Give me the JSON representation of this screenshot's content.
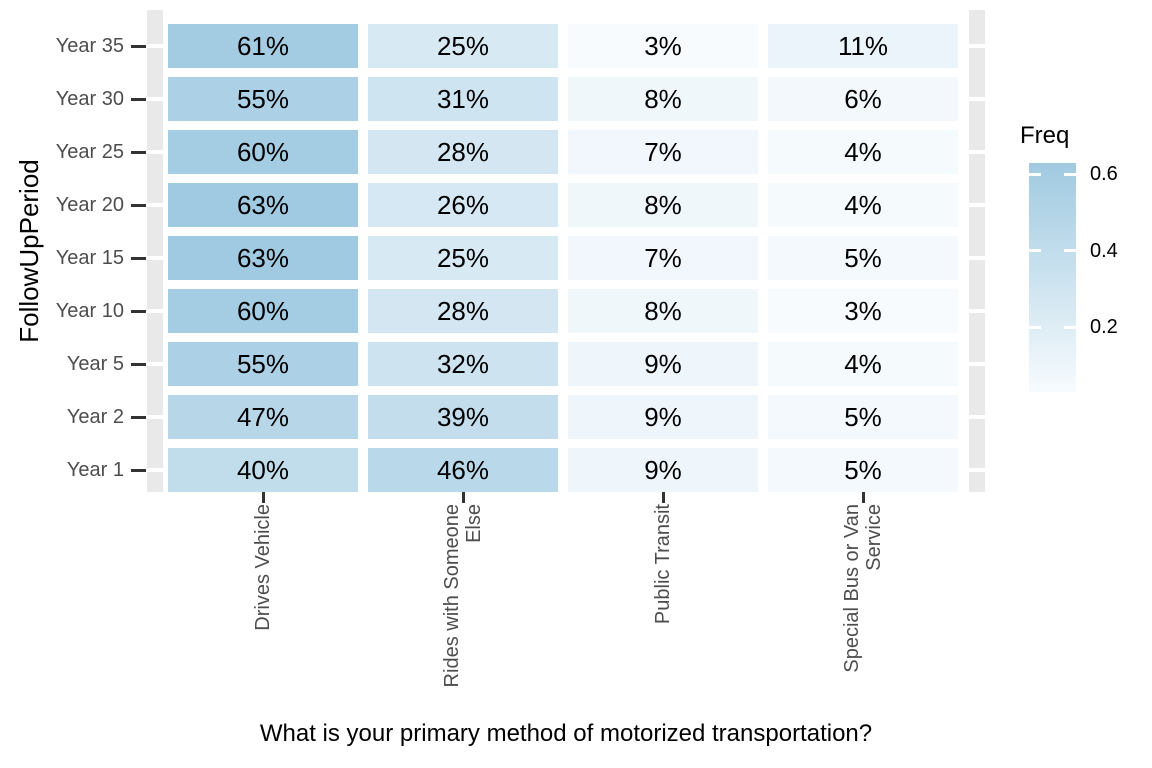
{
  "chart_data": {
    "type": "heatmap",
    "title": "",
    "xlabel": "What is your primary method of motorized transportation?",
    "ylabel": "FollowUpPeriod",
    "x_categories": [
      "Drives Vehicle",
      "Rides with Someone Else",
      "Public Transit",
      "Special Bus or Van Service"
    ],
    "x_category_lines": [
      [
        "Drives Vehicle"
      ],
      [
        "Rides with Someone",
        "Else"
      ],
      [
        "Public Transit"
      ],
      [
        "Special Bus or Van",
        "Service"
      ]
    ],
    "y_categories": [
      "Year 35",
      "Year 30",
      "Year 25",
      "Year 20",
      "Year 15",
      "Year 10",
      "Year 5",
      "Year 2",
      "Year 1"
    ],
    "series": [
      {
        "name": "Year 35",
        "values": [
          0.61,
          0.25,
          0.03,
          0.11
        ],
        "labels": [
          "61%",
          "25%",
          "3%",
          "11%"
        ]
      },
      {
        "name": "Year 30",
        "values": [
          0.55,
          0.31,
          0.08,
          0.06
        ],
        "labels": [
          "55%",
          "31%",
          "8%",
          "6%"
        ]
      },
      {
        "name": "Year 25",
        "values": [
          0.6,
          0.28,
          0.07,
          0.04
        ],
        "labels": [
          "60%",
          "28%",
          "7%",
          "4%"
        ]
      },
      {
        "name": "Year 20",
        "values": [
          0.63,
          0.26,
          0.08,
          0.04
        ],
        "labels": [
          "63%",
          "26%",
          "8%",
          "4%"
        ]
      },
      {
        "name": "Year 15",
        "values": [
          0.63,
          0.25,
          0.07,
          0.05
        ],
        "labels": [
          "63%",
          "25%",
          "7%",
          "5%"
        ]
      },
      {
        "name": "Year 10",
        "values": [
          0.6,
          0.28,
          0.08,
          0.03
        ],
        "labels": [
          "60%",
          "28%",
          "8%",
          "3%"
        ]
      },
      {
        "name": "Year 5",
        "values": [
          0.55,
          0.32,
          0.09,
          0.04
        ],
        "labels": [
          "55%",
          "32%",
          "9%",
          "4%"
        ]
      },
      {
        "name": "Year 2",
        "values": [
          0.47,
          0.39,
          0.09,
          0.05
        ],
        "labels": [
          "47%",
          "39%",
          "9%",
          "5%"
        ]
      },
      {
        "name": "Year 1",
        "values": [
          0.4,
          0.46,
          0.09,
          0.05
        ],
        "labels": [
          "40%",
          "46%",
          "9%",
          "5%"
        ]
      }
    ],
    "legend": {
      "title": "Freq",
      "position": "right",
      "tick_labels": [
        "0.6",
        "0.4",
        "0.2"
      ],
      "tick_values": [
        0.6,
        0.4,
        0.2
      ],
      "value_min": 0.03,
      "value_max": 0.63
    },
    "grid": false,
    "colors": {
      "gradient_low": "#FBFDFF",
      "gradient_high": "#A0CAE1",
      "panel_strip": "#E9E9E9",
      "axis_tick": "#333333",
      "tick_label_text": "#4D4D4D",
      "title_text": "#000000",
      "cell_text": "#000000",
      "background": "#FFFFFF"
    }
  }
}
